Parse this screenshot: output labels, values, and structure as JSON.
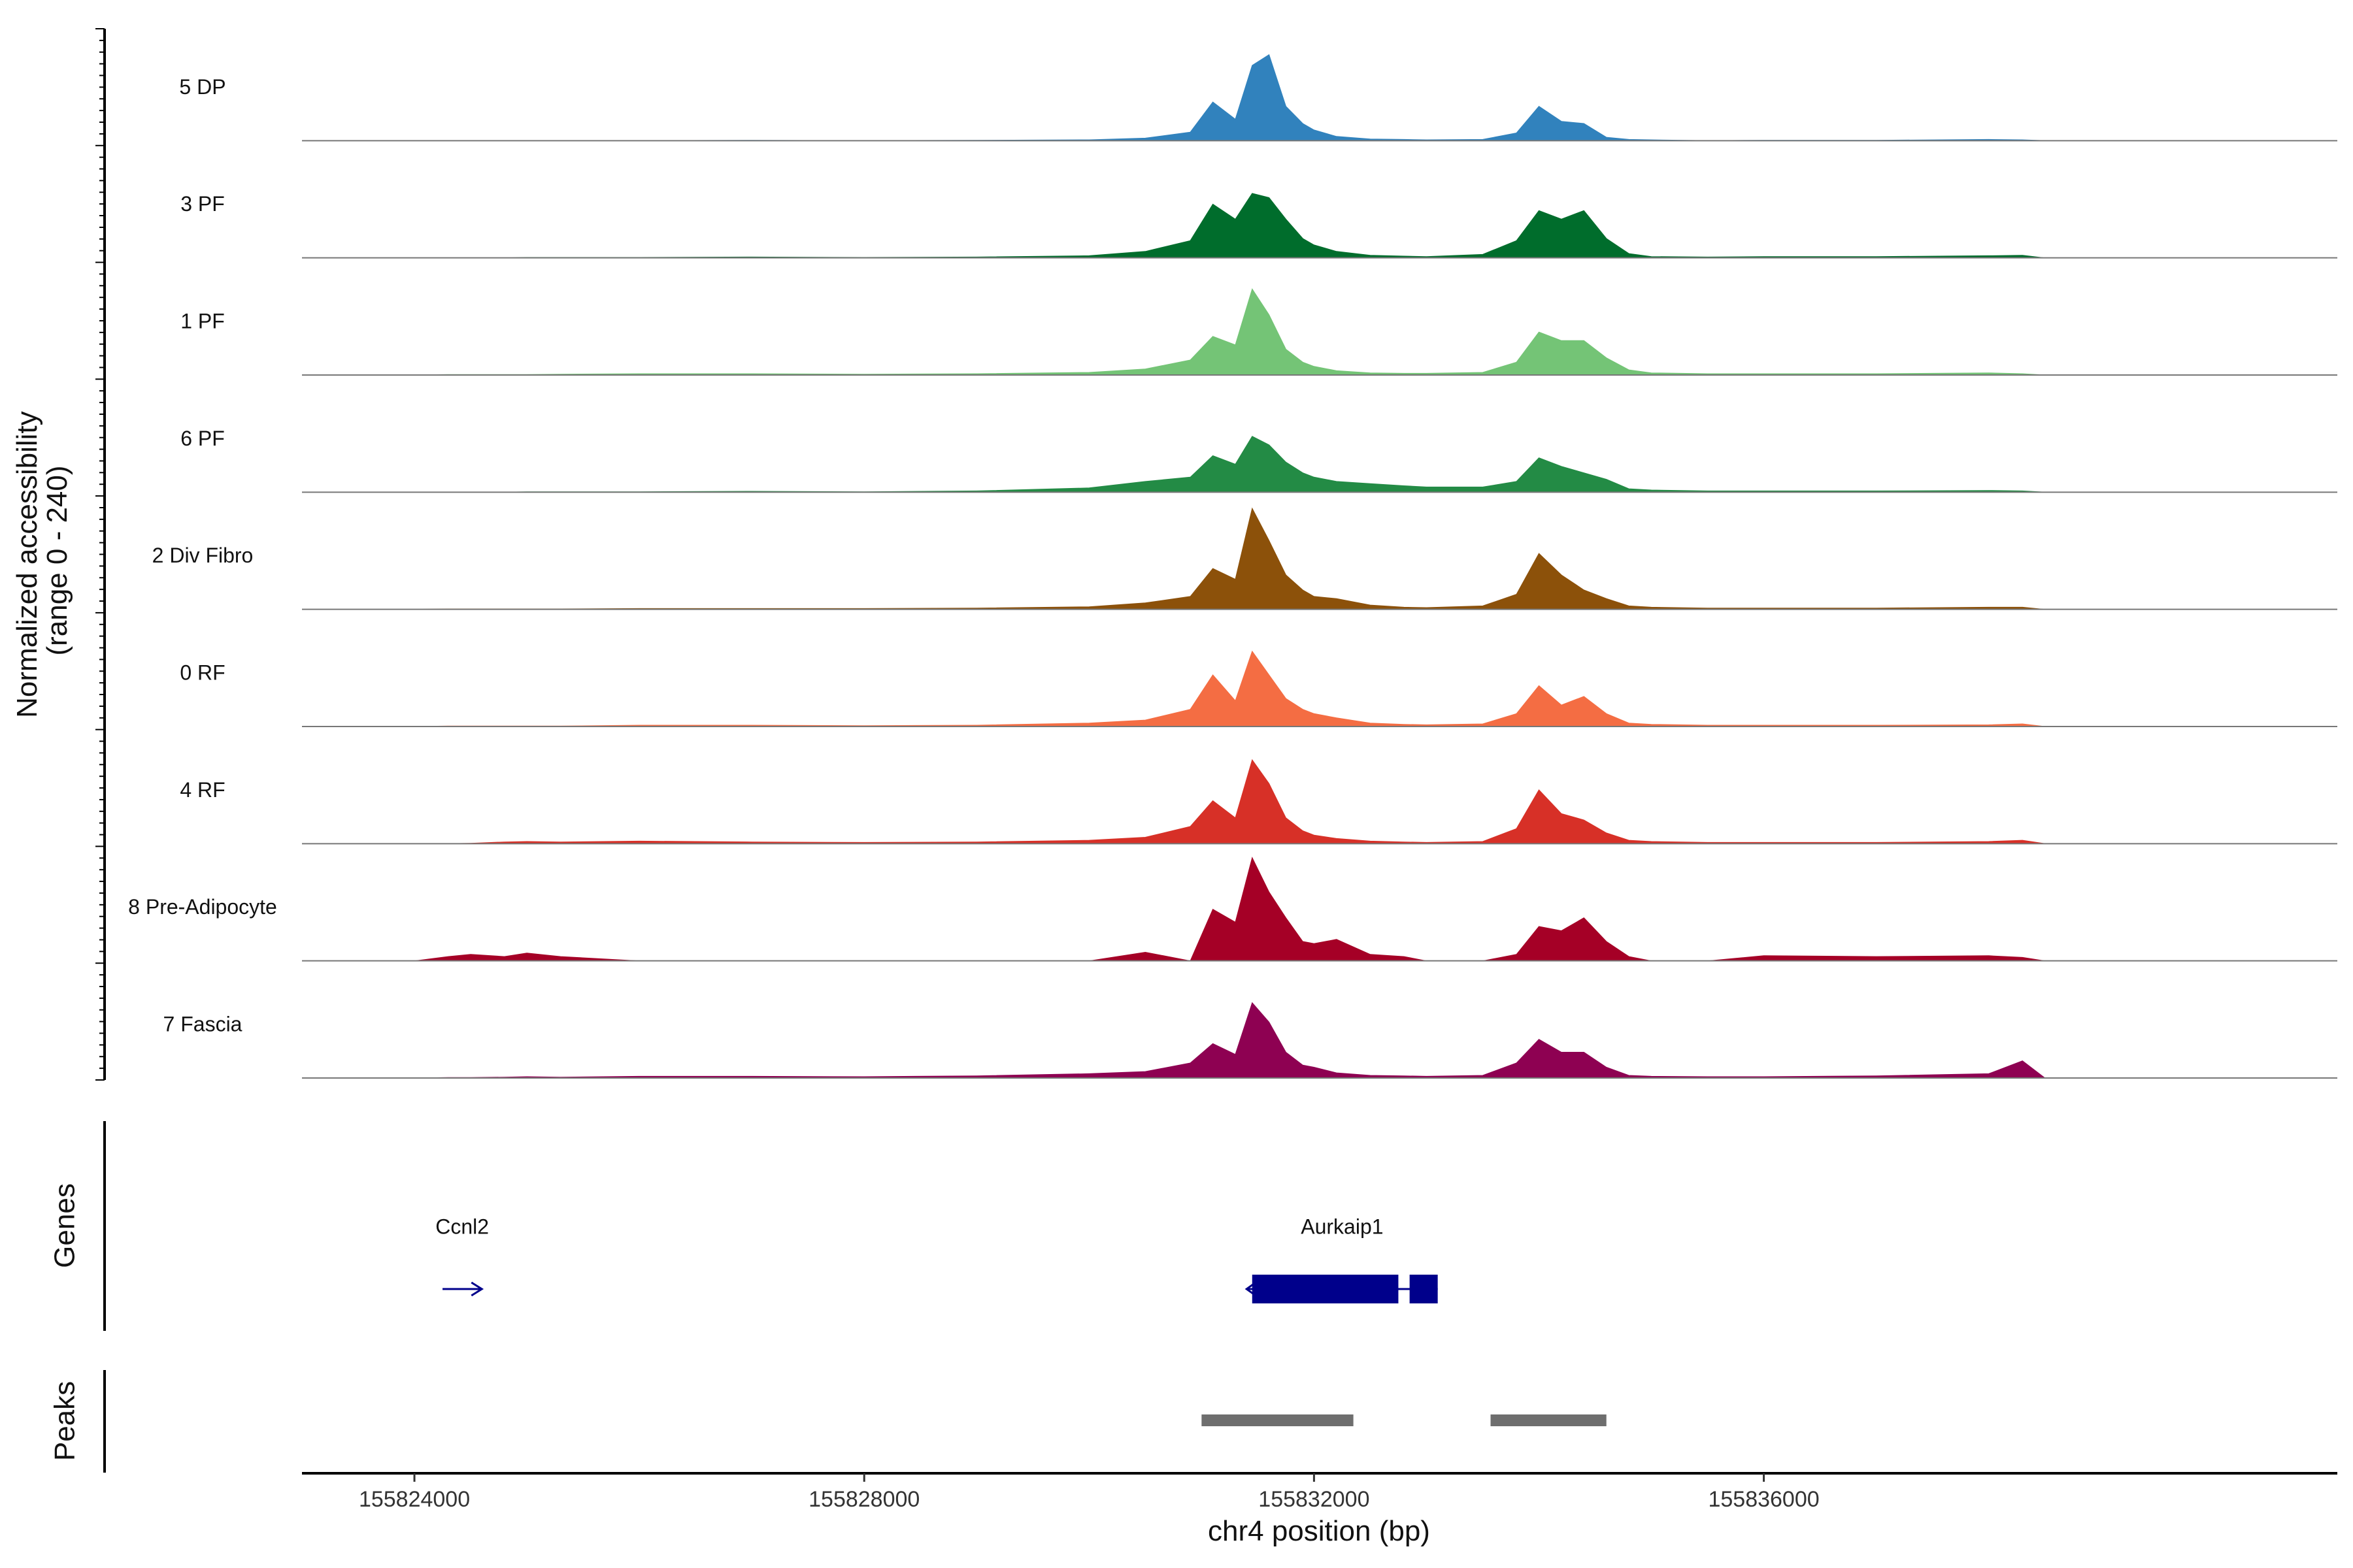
{
  "chart_data": {
    "type": "area",
    "chromosome": "chr4",
    "xlabel": "chr4 position (bp)",
    "xlim": [
      155823000,
      155841100
    ],
    "x_ticks": [
      155824000,
      155828000,
      155832000,
      155836000
    ],
    "x_tick_labels": [
      "155824000",
      "155828000",
      "155832000",
      "155836000"
    ],
    "coverage_panel_title": "Normalized accessibility\n(range 0 - 240)",
    "ylim": [
      0,
      240
    ],
    "genes_panel_title": "Genes",
    "peaks_panel_title": "Peaks",
    "positions": [
      155823700,
      155824000,
      155824300,
      155824500,
      155824800,
      155825000,
      155825300,
      155826000,
      155827000,
      155828000,
      155829000,
      155830000,
      155830500,
      155830900,
      155831100,
      155831300,
      155831450,
      155831600,
      155831750,
      155831900,
      155832000,
      155832200,
      155832500,
      155832800,
      155833000,
      155833500,
      155833800,
      155834000,
      155834200,
      155834400,
      155834600,
      155834800,
      155835000,
      155835500,
      155836000,
      155837000,
      155838000,
      155838300,
      155838500
    ],
    "series": [
      {
        "name": "5 DP",
        "color": "#3182bd",
        "values": [
          0,
          0,
          0,
          0,
          0,
          0,
          0,
          0,
          1,
          0,
          1,
          2,
          6,
          20,
          90,
          50,
          175,
          200,
          80,
          40,
          25,
          10,
          4,
          3,
          2,
          3,
          18,
          80,
          45,
          40,
          8,
          3,
          2,
          0,
          1,
          1,
          3,
          2,
          0
        ]
      },
      {
        "name": "3 PF",
        "color": "#006d2c",
        "values": [
          0,
          0,
          0,
          0,
          0,
          1,
          1,
          1,
          2,
          1,
          2,
          5,
          15,
          40,
          125,
          90,
          150,
          140,
          90,
          45,
          30,
          15,
          6,
          4,
          3,
          8,
          40,
          110,
          90,
          110,
          45,
          10,
          3,
          2,
          3,
          3,
          5,
          6,
          0
        ]
      },
      {
        "name": "1 PF",
        "color": "#74c476",
        "values": [
          0,
          0,
          1,
          1,
          1,
          1,
          2,
          3,
          3,
          2,
          3,
          6,
          14,
          35,
          90,
          70,
          200,
          140,
          60,
          30,
          20,
          10,
          5,
          4,
          4,
          6,
          30,
          100,
          80,
          80,
          40,
          12,
          5,
          3,
          3,
          3,
          5,
          3,
          0
        ]
      },
      {
        "name": "6 PF",
        "color": "#238b45",
        "values": [
          0,
          0,
          0,
          0,
          0,
          1,
          1,
          1,
          2,
          1,
          3,
          10,
          25,
          35,
          85,
          65,
          130,
          110,
          70,
          45,
          35,
          25,
          20,
          15,
          12,
          12,
          25,
          80,
          60,
          45,
          30,
          8,
          5,
          3,
          3,
          3,
          4,
          3,
          0
        ]
      },
      {
        "name": "2 Div Fibro",
        "color": "#8c510a",
        "values": [
          0,
          0,
          1,
          1,
          1,
          1,
          1,
          2,
          2,
          2,
          3,
          6,
          15,
          30,
          95,
          70,
          235,
          160,
          80,
          45,
          30,
          25,
          10,
          5,
          4,
          8,
          35,
          130,
          80,
          45,
          25,
          8,
          5,
          3,
          3,
          3,
          5,
          5,
          0
        ]
      },
      {
        "name": "0 RF",
        "color": "#f46d43",
        "values": [
          0,
          0,
          1,
          1,
          1,
          1,
          1,
          3,
          3,
          2,
          3,
          8,
          15,
          40,
          120,
          60,
          175,
          120,
          65,
          40,
          30,
          20,
          8,
          5,
          4,
          6,
          30,
          95,
          50,
          70,
          30,
          8,
          5,
          3,
          3,
          3,
          4,
          6,
          0
        ]
      },
      {
        "name": "4 RF",
        "color": "#d73027",
        "values": [
          0,
          0,
          0,
          1,
          4,
          5,
          4,
          6,
          4,
          3,
          4,
          8,
          15,
          40,
          100,
          60,
          195,
          140,
          60,
          30,
          20,
          12,
          6,
          4,
          3,
          5,
          35,
          125,
          70,
          55,
          25,
          8,
          5,
          3,
          3,
          3,
          5,
          8,
          0
        ]
      },
      {
        "name": "8 Pre-Adipocyte",
        "color": "#a50026",
        "values": [
          0,
          0,
          10,
          15,
          10,
          18,
          10,
          0,
          0,
          0,
          0,
          0,
          20,
          0,
          120,
          90,
          250,
          160,
          100,
          45,
          40,
          50,
          15,
          10,
          0,
          0,
          15,
          80,
          70,
          100,
          45,
          10,
          0,
          0,
          12,
          10,
          12,
          8,
          0
        ]
      },
      {
        "name": "7 Fascia",
        "color": "#8e0152",
        "values": [
          0,
          0,
          1,
          1,
          2,
          3,
          2,
          4,
          4,
          3,
          5,
          10,
          15,
          35,
          80,
          55,
          175,
          130,
          60,
          30,
          25,
          12,
          6,
          5,
          4,
          6,
          35,
          90,
          60,
          60,
          25,
          6,
          4,
          3,
          3,
          5,
          10,
          40,
          0
        ]
      }
    ],
    "genes": [
      {
        "name": "Ccnl2",
        "start": 155824250,
        "end": 155824600,
        "strand": "+"
      },
      {
        "name": "Aurkaip1",
        "start": 155831400,
        "end": 155833100,
        "strand": "-",
        "exons": [
          [
            155831450,
            155832750
          ],
          [
            155832850,
            155833100
          ]
        ]
      }
    ],
    "peaks": [
      {
        "start": 155831000,
        "end": 155832350
      },
      {
        "start": 155833570,
        "end": 155834600
      }
    ]
  }
}
